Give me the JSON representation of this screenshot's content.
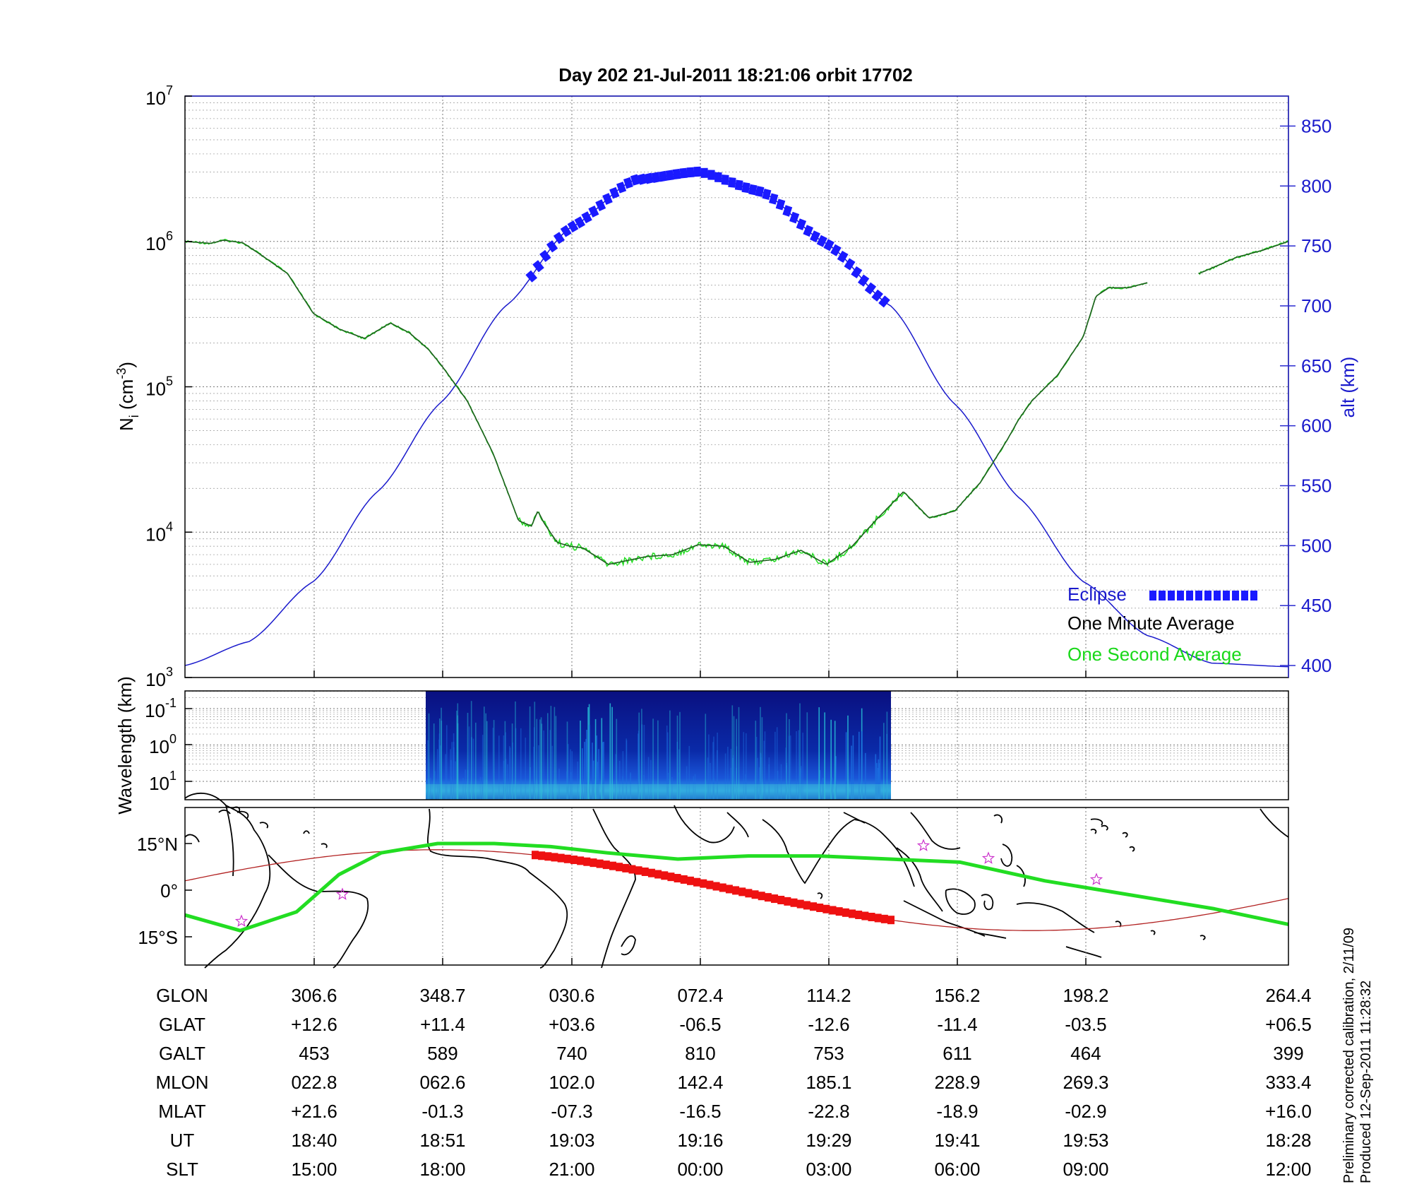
{
  "title": "Day 202  21-Jul-2011 18:21:06   orbit 17702",
  "colors": {
    "density_minute": "#1f5f1f",
    "density_second": "#22dd22",
    "altitude": "#1a1acc",
    "eclipse": "#1a1aff",
    "track_green": "#22dd22",
    "track_red": "#b22222",
    "track_red_eclipse": "#ee1111",
    "star": "#cc33cc"
  },
  "left_axis": {
    "label": "N",
    "label_sub": "i",
    "label_unit": " (cm",
    "label_sup": "-3",
    "label_close": ")",
    "ticks": [
      {
        "base": "10",
        "exp": "7",
        "value": 10000000
      },
      {
        "base": "10",
        "exp": "6",
        "value": 1000000
      },
      {
        "base": "10",
        "exp": "5",
        "value": 100000
      },
      {
        "base": "10",
        "exp": "4",
        "value": 10000
      },
      {
        "base": "10",
        "exp": "3",
        "value": 1000
      }
    ]
  },
  "right_axis": {
    "label": "alt (km)",
    "range": [
      390,
      875
    ],
    "ticks": [
      "850",
      "800",
      "750",
      "700",
      "650",
      "600",
      "550",
      "500",
      "450",
      "400"
    ]
  },
  "legend": {
    "eclipse": "Eclipse",
    "minute": "One Minute Average",
    "second": "One Second Average",
    "placement": "bottom-right"
  },
  "spectrogram": {
    "ylabel": "Wavelength (km)",
    "ticks": [
      {
        "base": "10",
        "exp": "-1"
      },
      {
        "base": "10",
        "exp": "0"
      },
      {
        "base": "10",
        "exp": "1"
      }
    ]
  },
  "map": {
    "ticks": [
      "15°N",
      "0°",
      "15°S"
    ]
  },
  "table": {
    "rows": [
      {
        "label": "GLON",
        "values": [
          "306.6",
          "348.7",
          "030.6",
          "072.4",
          "114.2",
          "156.2",
          "198.2",
          "264.4"
        ]
      },
      {
        "label": "GLAT",
        "values": [
          "+12.6",
          "+11.4",
          "+03.6",
          "-06.5",
          "-12.6",
          "-11.4",
          "-03.5",
          "+06.5"
        ]
      },
      {
        "label": "GALT",
        "values": [
          "453",
          "589",
          "740",
          "810",
          "753",
          "611",
          "464",
          "399"
        ]
      },
      {
        "label": "MLON",
        "values": [
          "022.8",
          "062.6",
          "102.0",
          "142.4",
          "185.1",
          "228.9",
          "269.3",
          "333.4"
        ]
      },
      {
        "label": "MLAT",
        "values": [
          "+21.6",
          "-01.3",
          "-07.3",
          "-16.5",
          "-22.8",
          "-18.9",
          "-02.9",
          "+16.0"
        ]
      },
      {
        "label": "UT",
        "values": [
          "18:40",
          "18:51",
          "19:03",
          "19:16",
          "19:29",
          "19:41",
          "19:53",
          "18:28"
        ]
      },
      {
        "label": "SLT",
        "values": [
          "15:00",
          "18:00",
          "21:00",
          "00:00",
          "03:00",
          "06:00",
          "09:00",
          "12:00"
        ]
      }
    ]
  },
  "notes": {
    "calibration": "Preliminary corrected calibration, 2/11/09",
    "produced": "Produced 12-Sep-2011 11:28:32"
  },
  "chart_data": {
    "type": "line",
    "title": "Day 202  21-Jul-2011 18:21:06   orbit 17702",
    "x_index_range": [
      0,
      8.6
    ],
    "log_y": true,
    "ylim": [
      1000,
      10000000
    ],
    "grid": true,
    "legend_placement": "bottom-right",
    "series": [
      {
        "name": "One Minute Average",
        "axis": "left",
        "x": [
          0,
          0.2,
          0.3,
          0.45,
          0.6,
          0.8,
          1.0,
          1.2,
          1.4,
          1.6,
          1.75,
          1.9,
          2.0,
          2.2,
          2.4,
          2.6,
          2.7,
          2.75,
          2.8,
          2.9,
          3.0,
          3.1,
          3.3,
          3.6,
          3.8,
          4.0,
          4.2,
          4.4,
          4.6,
          4.8,
          5.0,
          5.2,
          5.4,
          5.6,
          5.8,
          6.0,
          6.2,
          6.4,
          6.5,
          6.6,
          6.8,
          7.0,
          7.1,
          7.2,
          7.35,
          7.5
        ],
        "y": [
          1000000,
          970000,
          1020000,
          980000,
          800000,
          600000,
          320000,
          250000,
          215000,
          275000,
          235000,
          180000,
          140000,
          80000,
          35000,
          12000,
          11000,
          14000,
          11500,
          8500,
          8000,
          7800,
          6000,
          6800,
          7000,
          8200,
          8000,
          6200,
          6500,
          7500,
          6000,
          8000,
          12500,
          19000,
          12500,
          14000,
          22000,
          42000,
          60000,
          80000,
          120000,
          220000,
          420000,
          480000,
          480000,
          520000
        ]
      },
      {
        "name": "One Minute Average (continued)",
        "axis": "left",
        "x": [
          7.9,
          8.2,
          8.4,
          8.6
        ],
        "y": [
          600000,
          780000,
          870000,
          1000000
        ]
      },
      {
        "name": "alt (km)",
        "axis": "right",
        "x": [
          0,
          0.5,
          1.0,
          1.5,
          2.0,
          2.5,
          3.0,
          3.5,
          4.0,
          4.5,
          5.0,
          5.5,
          6.0,
          6.5,
          7.0,
          7.5,
          8.0,
          8.6
        ],
        "y": [
          400,
          420,
          470,
          545,
          620,
          700,
          765,
          805,
          812,
          795,
          752,
          700,
          618,
          540,
          470,
          425,
          402,
          399
        ]
      },
      {
        "name": "Eclipse",
        "axis": "right",
        "x_range": [
          2.7,
          5.45
        ]
      }
    ],
    "track": {
      "glon": [
        306.6,
        348.7,
        30.6,
        72.4,
        114.2,
        156.2,
        198.2,
        264.4
      ],
      "glat": [
        12.6,
        11.4,
        3.6,
        -6.5,
        -12.6,
        -11.4,
        -3.5,
        6.5
      ]
    }
  }
}
